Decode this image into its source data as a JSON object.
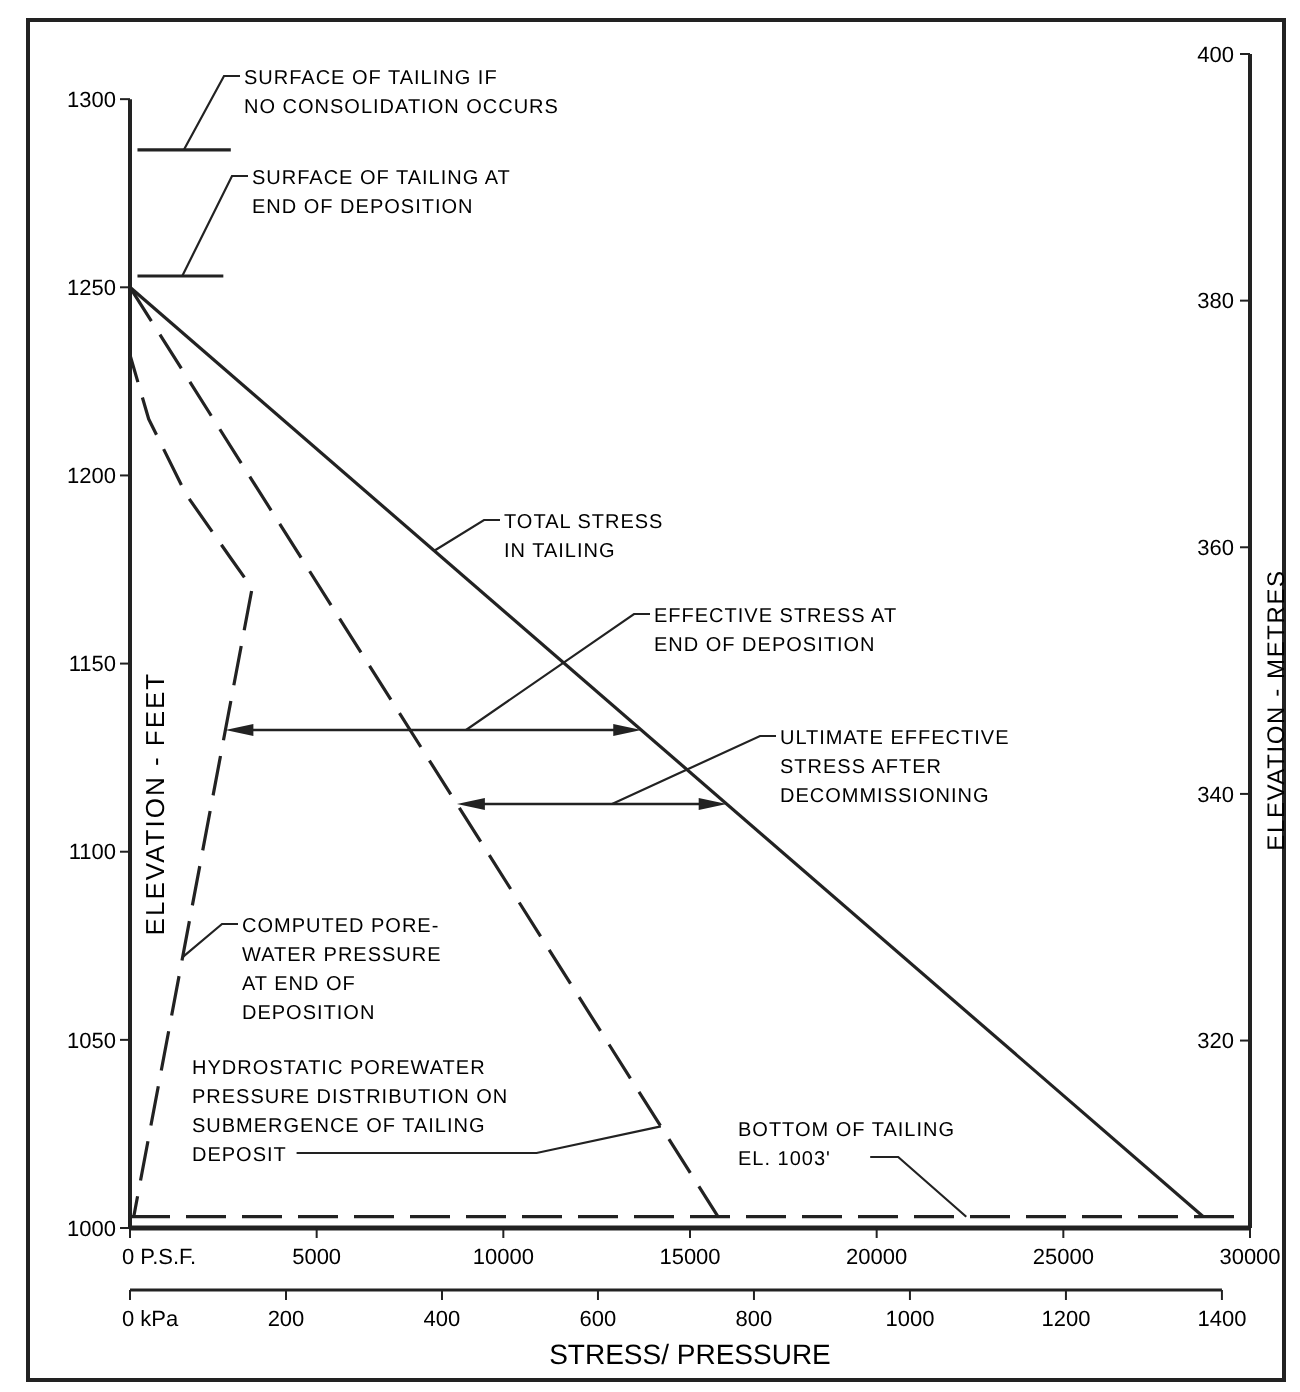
{
  "chart_data": {
    "type": "line",
    "xlabel": "STRESS/ PRESSURE",
    "ylabel": "ELEVATION - FEET",
    "y2label": "ELEVATION - METRES",
    "xlim": [
      0,
      30000
    ],
    "xticks": [
      {
        "value": 0,
        "label": "0 P.S.F."
      },
      5000,
      10000,
      15000,
      20000,
      25000,
      30000
    ],
    "x2lim": [
      0,
      1436
    ],
    "x2ticks": [
      {
        "value": 0,
        "label": "0 kPa"
      },
      200,
      400,
      600,
      800,
      1000,
      1200,
      1400
    ],
    "ylim": [
      1000,
      1312
    ],
    "yticks": [
      1000,
      1050,
      1100,
      1150,
      1200,
      1250,
      1300
    ],
    "y2lim": [
      304.8,
      400
    ],
    "y2ticks": [
      320,
      340,
      360,
      380,
      400
    ],
    "grid": false,
    "marker": "none",
    "series": [
      {
        "color": "#222222",
        "line_style": "solid",
        "x": [
          0,
          28750
        ],
        "values": [
          1250,
          1003
        ]
      },
      {
        "color": "#222222",
        "line_style": "dashed",
        "x": [
          0,
          15750
        ],
        "values": [
          1250,
          1003
        ]
      },
      {
        "color": "#222222",
        "line_style": "dashed",
        "x": [
          0,
          0,
          500,
          1500,
          2700,
          3270,
          100
        ],
        "values": [
          1250,
          1232,
          1215,
          1195,
          1178,
          1170,
          1003
        ]
      },
      {
        "color": "#222222",
        "line_style": "solid",
        "x": [
          200,
          2700
        ],
        "values": [
          1286.5,
          1286.5
        ]
      },
      {
        "color": "#222222",
        "line_style": "solid",
        "x": [
          200,
          2500
        ],
        "values": [
          1253,
          1253
        ]
      }
    ],
    "ref_lines": [
      {
        "axis": "y",
        "value": 1003,
        "line_style": "dashed",
        "color": "#222222"
      }
    ],
    "annotations": [
      {
        "text": "SURFACE OF TAILING IF NO CONSOLIDATION OCCURS",
        "x": 1440,
        "y": 1286.5
      },
      {
        "text": "SURFACE OF TAILING AT END OF DEPOSITION",
        "x": 1400,
        "y": 1253
      },
      {
        "text": "TOTAL STRESS IN TAILING",
        "x": 8150,
        "y": 1180
      },
      "EFFECTIVE STRESS AT END OF DEPOSITION",
      "ULTIMATE EFFECTIVE STRESS AFTER DECOMMISSIONING",
      {
        "text": "COMPUTED PORE-WATER PRESSURE AT END OF DEPOSITION",
        "x": 1410,
        "y": 1072
      },
      {
        "text": "HYDROSTATIC POREWATER PRESSURE DISTRIBUTION ON SUBMERGENCE OF TAILING DEPOSIT",
        "x": 14220,
        "y": 1027
      },
      {
        "text": "BOTTOM OF TAILING EL. 1003'",
        "x": 22400,
        "y": 1003
      }
    ]
  }
}
